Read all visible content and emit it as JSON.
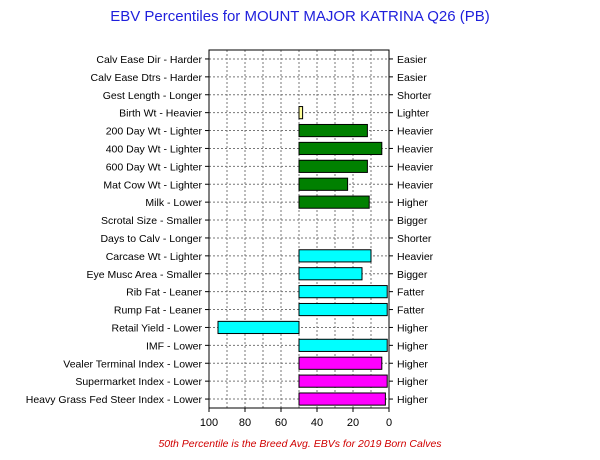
{
  "chart_data": {
    "type": "bar",
    "title": "EBV Percentiles for MOUNT MAJOR KATRINA Q26 (PB)",
    "footnote": "50th Percentile is the Breed Avg. EBVs for 2019 Born Calves",
    "xlim": [
      100,
      0
    ],
    "x_ticks": [
      100,
      80,
      60,
      40,
      20,
      0
    ],
    "grid": true,
    "baseline": 50,
    "colors": {
      "growth": "#008000",
      "carcase": "#00ffff",
      "index": "#ff00ff",
      "birth": "#ffff99"
    },
    "categories": [
      "Calv Ease Dir - Harder",
      "Calv Ease Dtrs - Harder",
      "Gest Length - Longer",
      "Birth Wt - Heavier",
      "200 Day Wt - Lighter",
      "400 Day Wt - Lighter",
      "600 Day Wt - Lighter",
      "Mat Cow Wt - Lighter",
      "Milk - Lower",
      "Scrotal Size - Smaller",
      "Days to Calv - Longer",
      "Carcase Wt - Lighter",
      "Eye Musc Area - Smaller",
      "Rib Fat - Leaner",
      "Rump Fat - Leaner",
      "Retail Yield - Lower",
      "IMF - Lower",
      "Vealer Terminal Index - Lower",
      "Supermarket Index - Lower",
      "Heavy Grass Fed Steer Index - Lower"
    ],
    "right_labels": [
      "Easier",
      "Easier",
      "Shorter",
      "Lighter",
      "Heavier",
      "Heavier",
      "Heavier",
      "Heavier",
      "Higher",
      "Bigger",
      "Shorter",
      "Heavier",
      "Bigger",
      "Fatter",
      "Fatter",
      "Higher",
      "Higher",
      "Higher",
      "Higher",
      "Higher"
    ],
    "values": [
      null,
      null,
      null,
      48,
      12,
      4,
      12,
      23,
      11,
      null,
      null,
      10,
      15,
      1,
      1,
      95,
      1,
      4,
      1,
      2
    ],
    "bar_colors": [
      null,
      null,
      null,
      "birth",
      "growth",
      "growth",
      "growth",
      "growth",
      "growth",
      null,
      null,
      "carcase",
      "carcase",
      "carcase",
      "carcase",
      "carcase",
      "carcase",
      "index",
      "index",
      "index"
    ]
  }
}
